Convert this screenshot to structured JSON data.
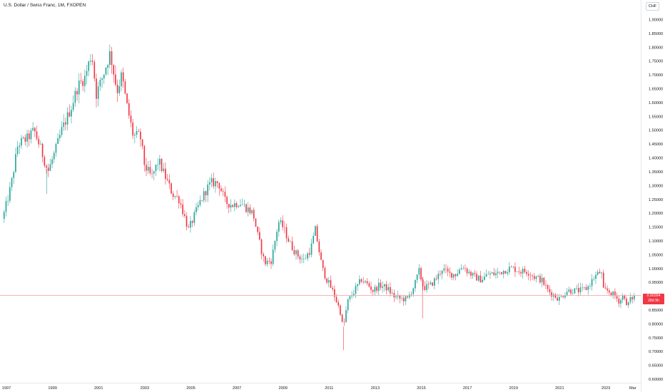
{
  "header": {
    "title": "U.S. Dollar / Swiss Franc, 1M, FXOPEN"
  },
  "price_axis": {
    "currency": "CHF",
    "last_price": "0.90264",
    "countdown": "28d 9h"
  },
  "colors": {
    "up": "#26a69a",
    "down": "#f23645",
    "price_line": "#f7a8ae",
    "grid": "none"
  },
  "chart_data": {
    "type": "candlestick",
    "title": "U.S. Dollar / Swiss Franc, 1M, FXOPEN",
    "xlabel": "",
    "ylabel": "",
    "grid": false,
    "ylim": [
      0.6,
      1.92
    ],
    "y_ticks": [
      "0.60000",
      "0.65000",
      "0.70000",
      "0.75000",
      "0.80000",
      "0.85000",
      "0.90000",
      "0.95000",
      "1.00000",
      "1.05000",
      "1.10000",
      "1.15000",
      "1.20000",
      "1.25000",
      "1.30000",
      "1.35000",
      "1.40000",
      "1.45000",
      "1.50000",
      "1.55000",
      "1.60000",
      "1.65000",
      "1.70000",
      "1.75000",
      "1.80000",
      "1.85000",
      "1.90000"
    ],
    "x_ticks": [
      "1997",
      "1999",
      "2001",
      "2003",
      "2005",
      "2007",
      "2009",
      "2011",
      "2013",
      "2015",
      "2017",
      "2019",
      "2021",
      "2023",
      "Mar"
    ],
    "x_tick_years": [
      1997,
      1999,
      2001,
      2003,
      2005,
      2007,
      2009,
      2011,
      2013,
      2015,
      2017,
      2019,
      2021,
      2023,
      2024.17
    ],
    "x_range": [
      1996.9,
      2024.6
    ],
    "series_close_approx": [
      [
        1996.9,
        1.2
      ],
      [
        1997.2,
        1.3
      ],
      [
        1997.5,
        1.45
      ],
      [
        1997.9,
        1.47
      ],
      [
        1998.2,
        1.5
      ],
      [
        1998.5,
        1.43
      ],
      [
        1998.8,
        1.35
      ],
      [
        1999.1,
        1.42
      ],
      [
        1999.4,
        1.5
      ],
      [
        1999.8,
        1.58
      ],
      [
        2000.1,
        1.66
      ],
      [
        2000.4,
        1.69
      ],
      [
        2000.7,
        1.78
      ],
      [
        2000.9,
        1.63
      ],
      [
        2001.2,
        1.7
      ],
      [
        2001.5,
        1.78
      ],
      [
        2001.8,
        1.64
      ],
      [
        2002.0,
        1.7
      ],
      [
        2002.2,
        1.6
      ],
      [
        2002.5,
        1.48
      ],
      [
        2002.8,
        1.48
      ],
      [
        2003.0,
        1.37
      ],
      [
        2003.3,
        1.33
      ],
      [
        2003.6,
        1.39
      ],
      [
        2003.9,
        1.33
      ],
      [
        2004.2,
        1.27
      ],
      [
        2004.5,
        1.25
      ],
      [
        2004.9,
        1.14
      ],
      [
        2005.1,
        1.18
      ],
      [
        2005.4,
        1.24
      ],
      [
        2005.7,
        1.29
      ],
      [
        2005.9,
        1.31
      ],
      [
        2006.2,
        1.31
      ],
      [
        2006.5,
        1.24
      ],
      [
        2006.8,
        1.23
      ],
      [
        2007.1,
        1.24
      ],
      [
        2007.4,
        1.22
      ],
      [
        2007.7,
        1.2
      ],
      [
        2007.9,
        1.12
      ],
      [
        2008.2,
        1.02
      ],
      [
        2008.5,
        1.03
      ],
      [
        2008.8,
        1.17
      ],
      [
        2009.0,
        1.15
      ],
      [
        2009.3,
        1.09
      ],
      [
        2009.6,
        1.05
      ],
      [
        2009.9,
        1.03
      ],
      [
        2010.2,
        1.07
      ],
      [
        2010.4,
        1.14
      ],
      [
        2010.7,
        1.0
      ],
      [
        2010.9,
        0.96
      ],
      [
        2011.2,
        0.91
      ],
      [
        2011.5,
        0.84
      ],
      [
        2011.6,
        0.78
      ],
      [
        2011.8,
        0.88
      ],
      [
        2012.1,
        0.92
      ],
      [
        2012.4,
        0.96
      ],
      [
        2012.7,
        0.94
      ],
      [
        2012.9,
        0.92
      ],
      [
        2013.2,
        0.94
      ],
      [
        2013.5,
        0.93
      ],
      [
        2013.8,
        0.9
      ],
      [
        2014.1,
        0.89
      ],
      [
        2014.4,
        0.89
      ],
      [
        2014.7,
        0.94
      ],
      [
        2014.9,
        0.99
      ],
      [
        2015.1,
        0.93
      ],
      [
        2015.4,
        0.94
      ],
      [
        2015.7,
        0.97
      ],
      [
        2015.9,
        1.0
      ],
      [
        2016.2,
        0.98
      ],
      [
        2016.5,
        0.98
      ],
      [
        2016.8,
        1.01
      ],
      [
        2017.0,
        0.99
      ],
      [
        2017.3,
        0.97
      ],
      [
        2017.6,
        0.96
      ],
      [
        2017.9,
        0.98
      ],
      [
        2018.2,
        0.98
      ],
      [
        2018.5,
        0.99
      ],
      [
        2018.8,
        1.0
      ],
      [
        2019.0,
        1.0
      ],
      [
        2019.3,
        0.99
      ],
      [
        2019.6,
        0.99
      ],
      [
        2019.9,
        0.97
      ],
      [
        2020.2,
        0.96
      ],
      [
        2020.5,
        0.92
      ],
      [
        2020.8,
        0.9
      ],
      [
        2021.0,
        0.89
      ],
      [
        2021.3,
        0.92
      ],
      [
        2021.6,
        0.92
      ],
      [
        2021.9,
        0.92
      ],
      [
        2022.2,
        0.93
      ],
      [
        2022.5,
        0.97
      ],
      [
        2022.8,
        0.99
      ],
      [
        2022.9,
        0.92
      ],
      [
        2023.1,
        0.92
      ],
      [
        2023.4,
        0.9
      ],
      [
        2023.6,
        0.88
      ],
      [
        2023.8,
        0.91
      ],
      [
        2023.9,
        0.86
      ],
      [
        2024.0,
        0.88
      ],
      [
        2024.2,
        0.9
      ]
    ],
    "last_price": 0.90264
  }
}
